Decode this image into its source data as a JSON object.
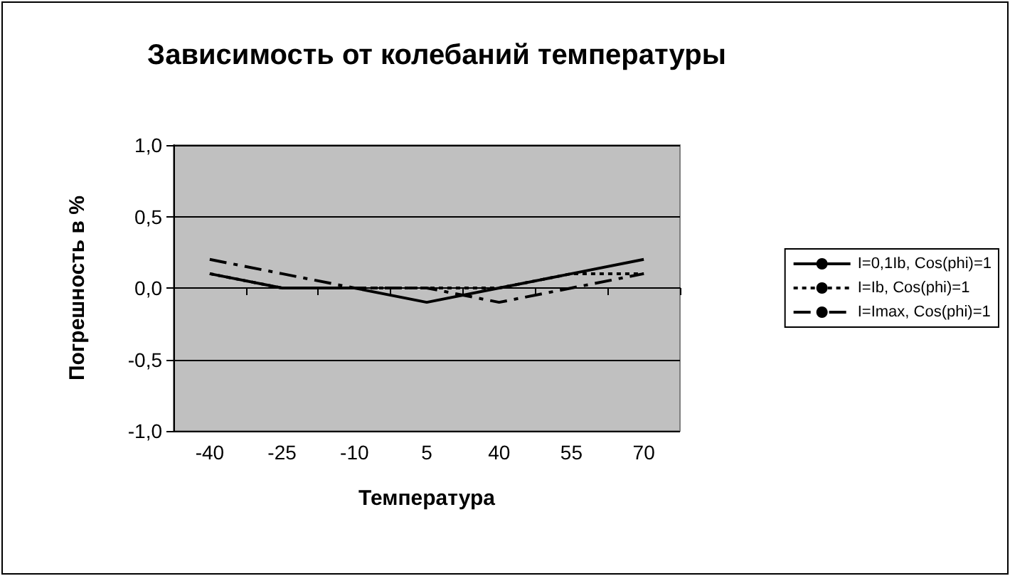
{
  "chart_data": {
    "type": "line",
    "title": "Зависимость от колебаний температуры",
    "xlabel": "Температура",
    "ylabel": "Погрешность в %",
    "categories": [
      "-40",
      "-25",
      "-10",
      "5",
      "40",
      "55",
      "70"
    ],
    "series": [
      {
        "name": "I=0,1Ib, Cos(phi)=1",
        "color": "#000000",
        "line_style": "solid",
        "values": [
          0.1,
          0,
          0,
          -0.1,
          0,
          0.1,
          0.2
        ]
      },
      {
        "name": "I=Ib, Cos(phi)=1",
        "color": "#000000",
        "line_style": "dotted",
        "values": [
          0.1,
          0,
          0,
          0,
          0,
          0.1,
          0.1
        ]
      },
      {
        "name": "I=Imax, Cos(phi)=1",
        "color": "#000000",
        "line_style": "dashdot",
        "values": [
          0.2,
          0.1,
          0,
          0,
          -0.1,
          0,
          0.1
        ]
      }
    ],
    "ylim": [
      -1,
      1
    ],
    "yticks": [
      {
        "value": -1,
        "label": "-1,0"
      },
      {
        "value": -0.5,
        "label": "-0,5"
      },
      {
        "value": 0,
        "label": "0,0"
      },
      {
        "value": 0.5,
        "label": "0,5"
      },
      {
        "value": 1,
        "label": "1,0"
      }
    ],
    "grid": "y",
    "legend": "right",
    "marker": "none"
  }
}
